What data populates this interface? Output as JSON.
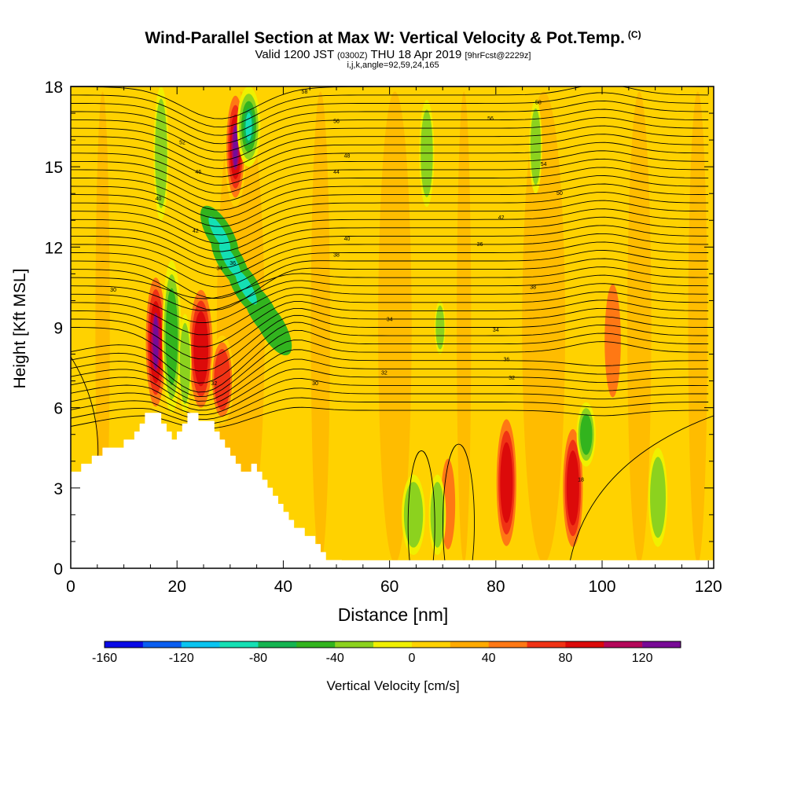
{
  "title": {
    "main": "Wind-Parallel Section at Max W: Vertical Velocity & Pot.Temp.",
    "mark": "(C)",
    "valid_prefix": "Valid 1200 JST",
    "valid_utc": "(0300Z)",
    "valid_date": "THU 18 Apr 2019",
    "forecast": "[9hrFcst@2229z]",
    "indices": "i,j,k,angle=92,59,24,165"
  },
  "chart_data": {
    "type": "heatmap",
    "xlabel": "Distance [nm]",
    "ylabel": "Height [Kft MSL]",
    "xlim": [
      0,
      121
    ],
    "ylim": [
      0,
      18
    ],
    "x_ticks": [
      0,
      20,
      40,
      60,
      80,
      100,
      120
    ],
    "y_ticks": [
      0,
      3,
      6,
      9,
      12,
      15,
      18
    ],
    "colorbar": {
      "label": "Vertical Velocity [cm/s]",
      "tick_labels": [
        "-160",
        "-120",
        "-80",
        "-40",
        "0",
        "40",
        "80",
        "120"
      ],
      "tick_values": [
        -160,
        -120,
        -80,
        -40,
        0,
        40,
        80,
        120
      ],
      "range": [
        -160,
        140
      ],
      "colors": [
        "#0a0ae6",
        "#0a5ef0",
        "#0ac4f0",
        "#14e0b4",
        "#14b450",
        "#32b41e",
        "#8cd21e",
        "#f0f000",
        "#ffd200",
        "#ffaa00",
        "#ff7814",
        "#f03214",
        "#dc0a0a",
        "#b4085a",
        "#780a96"
      ]
    },
    "terrain_kft": [
      [
        0,
        3.6
      ],
      [
        2,
        3.6
      ],
      [
        2,
        3.9
      ],
      [
        4,
        3.9
      ],
      [
        4,
        4.2
      ],
      [
        6,
        4.2
      ],
      [
        6,
        4.5
      ],
      [
        10,
        4.5
      ],
      [
        10,
        4.8
      ],
      [
        12,
        4.8
      ],
      [
        12,
        5.1
      ],
      [
        13,
        5.1
      ],
      [
        13,
        5.4
      ],
      [
        14,
        5.4
      ],
      [
        14,
        5.8
      ],
      [
        17,
        5.8
      ],
      [
        17,
        5.4
      ],
      [
        18,
        5.4
      ],
      [
        18,
        5.1
      ],
      [
        19,
        5.1
      ],
      [
        19,
        4.8
      ],
      [
        20,
        4.8
      ],
      [
        20,
        5.1
      ],
      [
        21,
        5.1
      ],
      [
        21,
        5.4
      ],
      [
        22,
        5.4
      ],
      [
        22,
        5.8
      ],
      [
        24,
        5.8
      ],
      [
        24,
        5.5
      ],
      [
        27,
        5.5
      ],
      [
        27,
        5.1
      ],
      [
        28,
        5.1
      ],
      [
        28,
        4.8
      ],
      [
        29,
        4.8
      ],
      [
        29,
        4.5
      ],
      [
        30,
        4.5
      ],
      [
        30,
        4.2
      ],
      [
        31,
        4.2
      ],
      [
        31,
        3.9
      ],
      [
        32,
        3.9
      ],
      [
        32,
        3.6
      ],
      [
        34,
        3.6
      ],
      [
        34,
        3.9
      ],
      [
        35,
        3.9
      ],
      [
        35,
        3.6
      ],
      [
        36,
        3.6
      ],
      [
        36,
        3.3
      ],
      [
        37,
        3.3
      ],
      [
        37,
        3.0
      ],
      [
        38,
        3.0
      ],
      [
        38,
        2.7
      ],
      [
        39,
        2.7
      ],
      [
        39,
        2.4
      ],
      [
        40,
        2.4
      ],
      [
        40,
        2.1
      ],
      [
        41,
        2.1
      ],
      [
        41,
        1.8
      ],
      [
        42,
        1.8
      ],
      [
        42,
        1.5
      ],
      [
        44,
        1.5
      ],
      [
        44,
        1.2
      ],
      [
        46,
        1.2
      ],
      [
        46,
        0.9
      ],
      [
        47,
        0.9
      ],
      [
        47,
        0.6
      ],
      [
        48,
        0.6
      ],
      [
        48,
        0.3
      ],
      [
        51,
        0.3
      ],
      [
        51,
        0
      ]
    ],
    "updrafts": [
      {
        "x": 16,
        "w": 2.2,
        "z0": 5.6,
        "z1": 11.3,
        "peak_cm_s": 120
      },
      {
        "x": 24.5,
        "w": 2.6,
        "z0": 5.6,
        "z1": 10.8,
        "peak_cm_s": 80
      },
      {
        "x": 28.5,
        "w": 2.2,
        "z0": 5.4,
        "z1": 8.7,
        "peak_cm_s": 60
      },
      {
        "x": 31,
        "w": 2.0,
        "z0": 13.5,
        "z1": 18,
        "peak_cm_s": 120
      },
      {
        "x": 82,
        "w": 2.2,
        "z0": 0.4,
        "z1": 6.0,
        "peak_cm_s": 90
      },
      {
        "x": 94.5,
        "w": 2.2,
        "z0": 0.4,
        "z1": 5.6,
        "peak_cm_s": 90
      },
      {
        "x": 71,
        "w": 1.6,
        "z0": 0.4,
        "z1": 4.4,
        "peak_cm_s": 40
      },
      {
        "x": 102,
        "w": 1.8,
        "z0": 6.0,
        "z1": 11.0,
        "peak_cm_s": 40
      }
    ],
    "downdrafts": [
      {
        "x": 19,
        "w": 1.8,
        "z0": 5.8,
        "z1": 11.5,
        "peak_cm_s": -60
      },
      {
        "x": 21.5,
        "w": 1.2,
        "z0": 5.8,
        "z1": 9.5,
        "peak_cm_s": -40
      },
      {
        "x": 33.5,
        "w": 2.2,
        "z0": 15,
        "z1": 18,
        "peak_cm_s": -100
      },
      {
        "x": 97,
        "w": 1.8,
        "z0": 3.8,
        "z1": 6.2,
        "peak_cm_s": -60
      },
      {
        "x": 64.5,
        "w": 2.2,
        "z0": 0.5,
        "z1": 3.5,
        "peak_cm_s": -40
      },
      {
        "x": 69,
        "w": 1.6,
        "z0": 0.5,
        "z1": 3.5,
        "peak_cm_s": -40
      },
      {
        "x": 110.5,
        "w": 1.8,
        "z0": 0.8,
        "z1": 4.5,
        "peak_cm_s": -40
      },
      {
        "x": 17,
        "w": 1.4,
        "z0": 13,
        "z1": 18,
        "peak_cm_s": -40
      },
      {
        "x": 67,
        "w": 1.4,
        "z0": 13.5,
        "z1": 17.5,
        "peak_cm_s": -40
      },
      {
        "x": 87.5,
        "w": 1.2,
        "z0": 14,
        "z1": 17.5,
        "peak_cm_s": -40
      },
      {
        "x": 69.5,
        "w": 1.0,
        "z0": 8,
        "z1": 10,
        "peak_cm_s": -40
      }
    ],
    "isentrope_labels": [
      {
        "text": "30",
        "x": 8,
        "z": 10.4
      },
      {
        "text": "30",
        "x": 46,
        "z": 6.9
      },
      {
        "text": "32",
        "x": 27,
        "z": 6.9
      },
      {
        "text": "32",
        "x": 59,
        "z": 7.3
      },
      {
        "text": "32",
        "x": 83,
        "z": 7.1
      },
      {
        "text": "34",
        "x": 60,
        "z": 9.3
      },
      {
        "text": "34",
        "x": 80,
        "z": 8.9
      },
      {
        "text": "34",
        "x": 28,
        "z": 11.2
      },
      {
        "text": "36",
        "x": 82,
        "z": 7.8
      },
      {
        "text": "36",
        "x": 77,
        "z": 12.1
      },
      {
        "text": "36",
        "x": 30.5,
        "z": 11.4
      },
      {
        "text": "38",
        "x": 50,
        "z": 11.7
      },
      {
        "text": "38",
        "x": 87,
        "z": 10.5
      },
      {
        "text": "40",
        "x": 16.5,
        "z": 13.8
      },
      {
        "text": "40",
        "x": 52,
        "z": 12.3
      },
      {
        "text": "42",
        "x": 23.5,
        "z": 12.6
      },
      {
        "text": "42",
        "x": 81,
        "z": 13.1
      },
      {
        "text": "44",
        "x": 50,
        "z": 14.8
      },
      {
        "text": "46",
        "x": 24,
        "z": 14.8
      },
      {
        "text": "48",
        "x": 52,
        "z": 15.4
      },
      {
        "text": "50",
        "x": 92,
        "z": 14.0
      },
      {
        "text": "52",
        "x": 21,
        "z": 15.9
      },
      {
        "text": "54",
        "x": 89,
        "z": 15.1
      },
      {
        "text": "56",
        "x": 50,
        "z": 16.7
      },
      {
        "text": "56",
        "x": 79,
        "z": 16.8
      },
      {
        "text": "58",
        "x": 88,
        "z": 17.4
      },
      {
        "text": "58",
        "x": 44,
        "z": 17.8
      },
      {
        "text": "18",
        "x": 96,
        "z": 3.3
      }
    ]
  }
}
